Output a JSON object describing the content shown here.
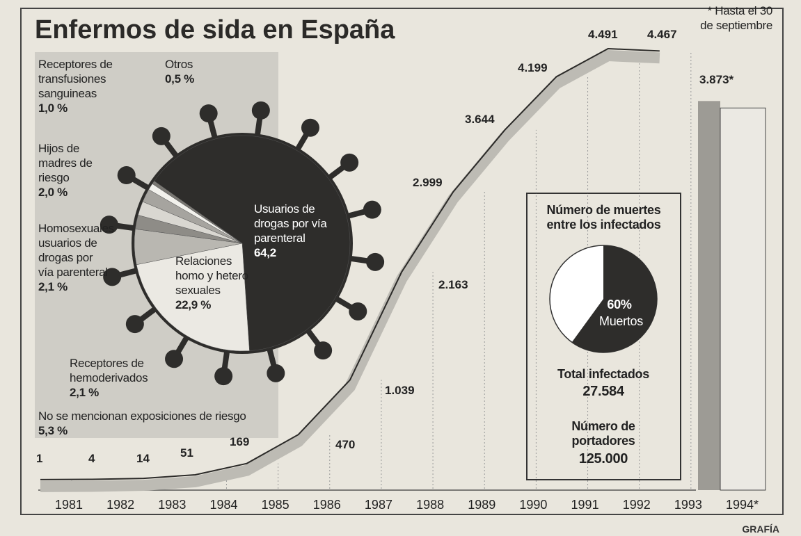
{
  "title": "Enfermos de sida en España",
  "source": "GRAFÍA",
  "chart_data": [
    {
      "type": "line",
      "note": "* Hasta el 30 de septiembre",
      "color": "#2b2a28",
      "categories": [
        "1981",
        "1982",
        "1983",
        "1984",
        "1985",
        "1986",
        "1987",
        "1988",
        "1989",
        "1990",
        "1991",
        "1992",
        "1993",
        "1994*"
      ],
      "values": [
        1,
        4,
        14,
        51,
        169,
        470,
        1039,
        2163,
        2999,
        3644,
        4199,
        4491,
        4467,
        3873
      ],
      "value_labels": [
        "1",
        "4",
        "14",
        "51",
        "169",
        "470",
        "1.039",
        "2.163",
        "2.999",
        "3.644",
        "4.199",
        "4.491",
        "4.467",
        "3.873*"
      ]
    },
    {
      "type": "pie",
      "categories": [
        "Usuarios de drogas por vía parenteral",
        "Relaciones homo y hetero sexuales",
        "No se mencionan exposiciones de riesgo",
        "Receptores de hemoderivados",
        "Homosexuales usuarios de drogas por vía parenteral",
        "Hijos de madres de riesgo",
        "Receptores de transfusiones sanguineas",
        "Otros"
      ],
      "values": [
        64.2,
        22.9,
        5.3,
        2.1,
        2.1,
        2.0,
        1.0,
        0.5
      ],
      "value_labels": [
        "64,2",
        "22,9 %",
        "5,3 %",
        "2,1 %",
        "2,1 %",
        "2,0 %",
        "1,0 %",
        "0,5 %"
      ],
      "colors": [
        "#2e2d2b",
        "#ebe9e3",
        "#b9b7b1",
        "#8e8c87",
        "#d9d7d1",
        "#a6a49f",
        "#f2f1ec",
        "#7a7873"
      ]
    },
    {
      "type": "pie",
      "title": "Número de muertes entre los infectados",
      "categories": [
        "Muertos"
      ],
      "values": [
        60
      ],
      "value_labels": [
        "60%"
      ],
      "colors": [
        "#2e2d2b"
      ],
      "annotations": [
        {
          "label": "Total infectados",
          "value": "27.584"
        },
        {
          "label": "Número de portadores",
          "value": "125.000"
        }
      ]
    }
  ]
}
